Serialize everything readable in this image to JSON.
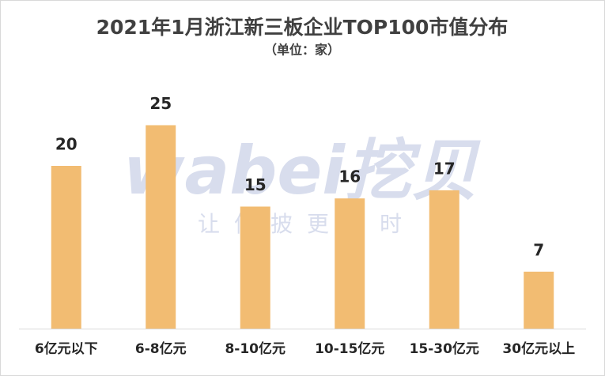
{
  "chart_data": {
    "type": "bar",
    "title": "2021年1月浙江新三板企业TOP100市值分布",
    "subtitle": "（单位：家）",
    "annotations": [
      "wabei挖贝",
      "让信披更及时"
    ],
    "categories": [
      "6亿元以下",
      "6-8亿元",
      "8-10亿元",
      "10-15亿元",
      "15-30亿元",
      "30亿元以上"
    ],
    "values": [
      20,
      25,
      15,
      16,
      17,
      7
    ],
    "color": "#f2bc72"
  }
}
